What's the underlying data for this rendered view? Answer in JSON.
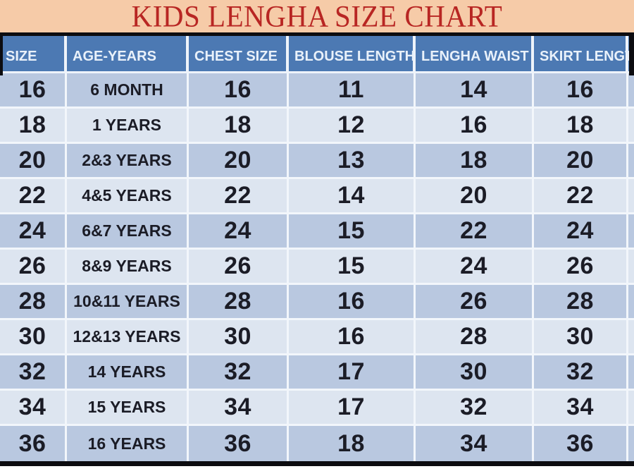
{
  "title": "KIDS LENGHA SIZE CHART",
  "colors": {
    "title_background": "#f6cba8",
    "title_text": "#b82623",
    "header_background": "#4c79b3",
    "header_text": "#e9f1fa",
    "row_odd": "#b9c8e0",
    "row_even": "#dde5f0",
    "cell_text": "#1b1c26",
    "outer_border": "#0c0c10"
  },
  "table": {
    "columns": [
      "SIZE",
      "AGE-YEARS",
      "CHEST SIZE",
      "BLOUSE LENGTH",
      "LENGHA WAIST",
      "SKIRT LENGTH"
    ],
    "column_keys": [
      "size",
      "age-years",
      "chest-size",
      "blouse-length",
      "lengha-waist",
      "skirt-length"
    ],
    "rows": [
      [
        "16",
        "6 MONTH",
        "16",
        "11",
        "14",
        "16"
      ],
      [
        "18",
        "1 YEARS",
        "18",
        "12",
        "16",
        "18"
      ],
      [
        "20",
        "2&3 YEARS",
        "20",
        "13",
        "18",
        "20"
      ],
      [
        "22",
        "4&5 YEARS",
        "22",
        "14",
        "20",
        "22"
      ],
      [
        "24",
        "6&7 YEARS",
        "24",
        "15",
        "22",
        "24"
      ],
      [
        "26",
        "8&9 YEARS",
        "26",
        "15",
        "24",
        "26"
      ],
      [
        "28",
        "10&11 YEARS",
        "28",
        "16",
        "26",
        "28"
      ],
      [
        "30",
        "12&13 YEARS",
        "30",
        "16",
        "28",
        "30"
      ],
      [
        "32",
        "14 YEARS",
        "32",
        "17",
        "30",
        "32"
      ],
      [
        "34",
        "15 YEARS",
        "34",
        "17",
        "32",
        "34"
      ],
      [
        "36",
        "16 YEARS",
        "36",
        "18",
        "34",
        "36"
      ]
    ]
  },
  "chart_data": {
    "type": "table",
    "title": "KIDS LENGHA SIZE CHART",
    "columns": [
      "SIZE",
      "AGE-YEARS",
      "CHEST SIZE",
      "BLOUSE LENGTH",
      "LENGHA WAIST",
      "SKIRT LENGTH"
    ],
    "rows": [
      [
        "16",
        "6 MONTH",
        "16",
        "11",
        "14",
        "16"
      ],
      [
        "18",
        "1 YEARS",
        "18",
        "12",
        "16",
        "18"
      ],
      [
        "20",
        "2&3 YEARS",
        "20",
        "13",
        "18",
        "20"
      ],
      [
        "22",
        "4&5 YEARS",
        "22",
        "14",
        "20",
        "22"
      ],
      [
        "24",
        "6&7 YEARS",
        "24",
        "15",
        "22",
        "24"
      ],
      [
        "26",
        "8&9 YEARS",
        "26",
        "15",
        "24",
        "26"
      ],
      [
        "28",
        "10&11 YEARS",
        "28",
        "16",
        "26",
        "28"
      ],
      [
        "30",
        "12&13 YEARS",
        "30",
        "16",
        "28",
        "30"
      ],
      [
        "32",
        "14 YEARS",
        "32",
        "17",
        "30",
        "32"
      ],
      [
        "34",
        "15 YEARS",
        "34",
        "17",
        "32",
        "34"
      ],
      [
        "36",
        "16 YEARS",
        "36",
        "18",
        "34",
        "36"
      ]
    ],
    "layout": {
      "striped_rows": true,
      "header_position": "top",
      "last_column_clipped": true
    }
  }
}
